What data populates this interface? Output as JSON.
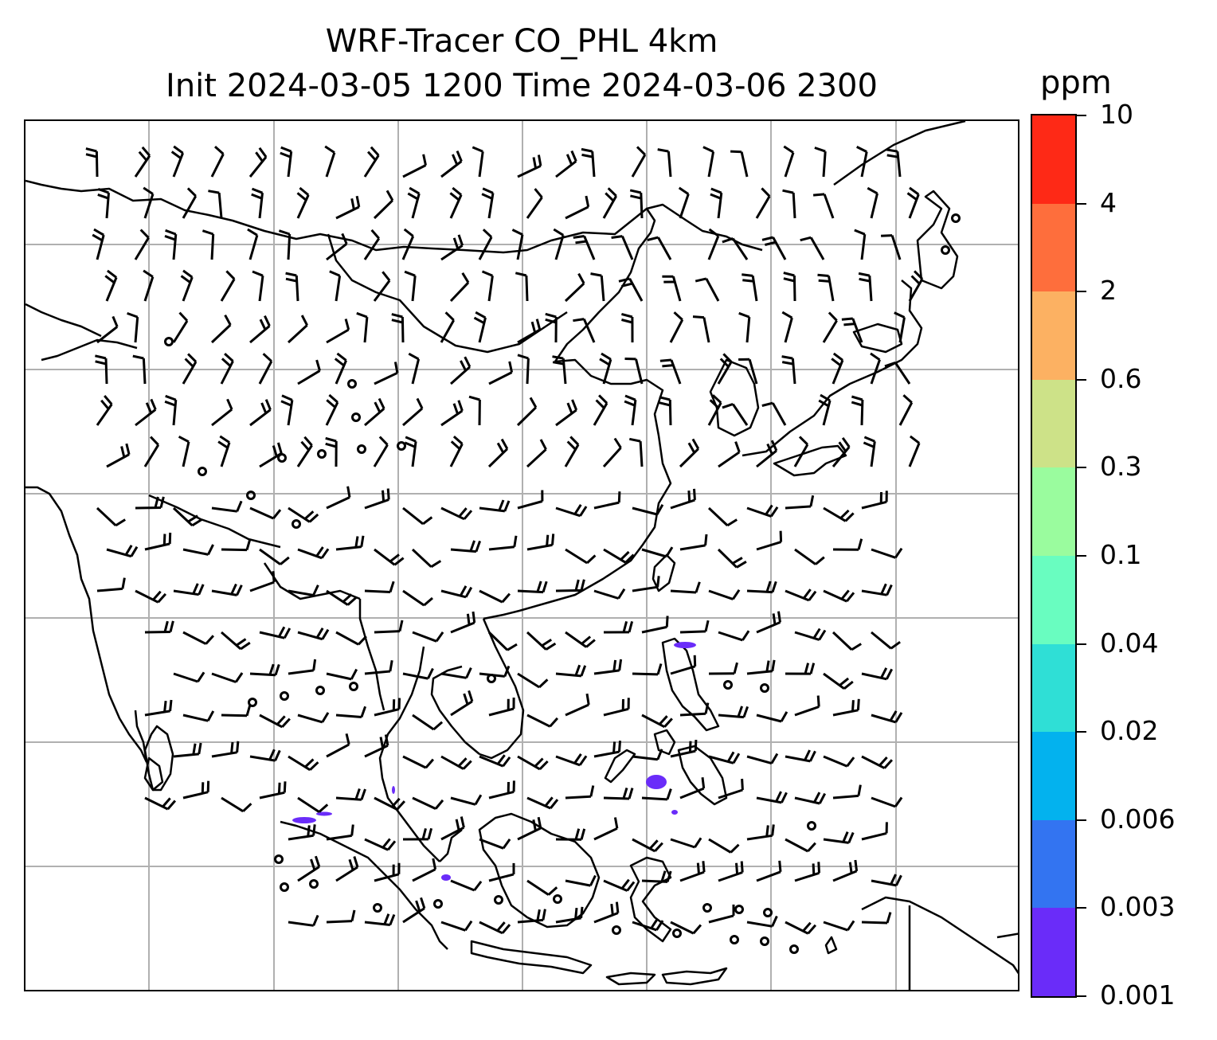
{
  "title": {
    "line1": "WRF-Tracer CO_PHL 4km",
    "line2": "Init 2024-03-05 1200 Time 2024-03-06 2300"
  },
  "colorbar": {
    "unit": "ppm",
    "levels": [
      "0.001",
      "0.003",
      "0.006",
      "0.02",
      "0.04",
      "0.1",
      "0.3",
      "0.6",
      "2",
      "4",
      "10"
    ],
    "colors": [
      "#6a2cf9",
      "#3374f1",
      "#03b2ee",
      "#2fdfd6",
      "#69fdc0",
      "#9afc9e",
      "#cde288",
      "#fcb162",
      "#fe6e3c",
      "#fe2916"
    ]
  },
  "map": {
    "grid_color": "#b0b0b0",
    "coast_color": "#000000",
    "plume_color": "#6a2cf9"
  }
}
